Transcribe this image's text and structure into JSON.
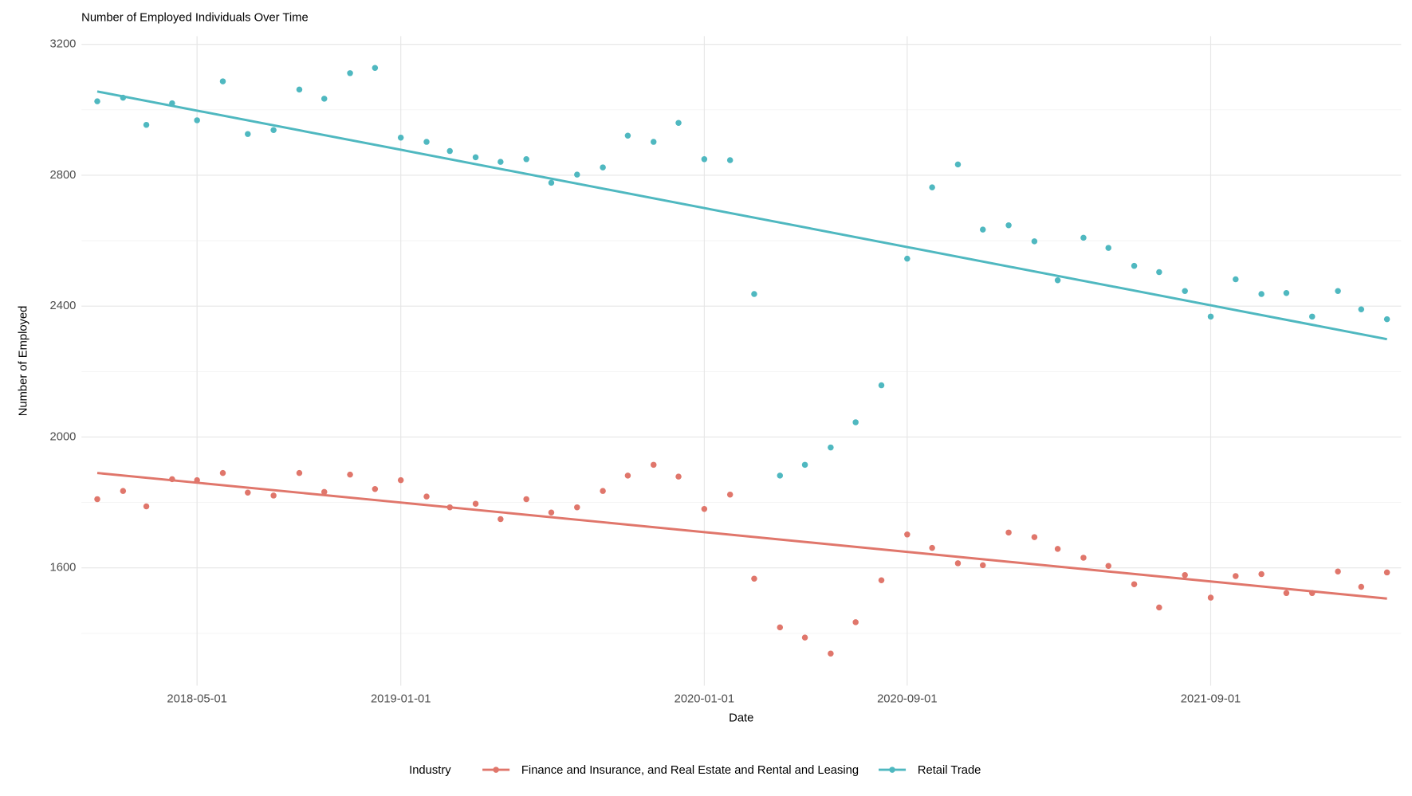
{
  "chart_data": {
    "type": "scatter",
    "title": "Number of Employed Individuals Over Time",
    "x_label": "Date",
    "y_label": "Number of Employed",
    "legend_title": "Industry",
    "legend_position": "bottom",
    "x": [
      "2018-01-01",
      "2018-02-01",
      "2018-03-01",
      "2018-04-01",
      "2018-05-01",
      "2018-06-01",
      "2018-07-01",
      "2018-08-01",
      "2018-09-01",
      "2018-10-01",
      "2018-11-01",
      "2018-12-01",
      "2019-01-01",
      "2019-02-01",
      "2019-03-01",
      "2019-04-01",
      "2019-05-01",
      "2019-06-01",
      "2019-07-01",
      "2019-08-01",
      "2019-09-01",
      "2019-10-01",
      "2019-11-01",
      "2019-12-01",
      "2020-01-01",
      "2020-02-01",
      "2020-03-01",
      "2020-04-01",
      "2020-05-01",
      "2020-06-01",
      "2020-07-01",
      "2020-08-01",
      "2020-09-01",
      "2020-10-01",
      "2020-11-01",
      "2020-12-01",
      "2021-01-01",
      "2021-02-01",
      "2021-03-01",
      "2021-04-01",
      "2021-05-01",
      "2021-06-01",
      "2021-07-01",
      "2021-08-01",
      "2021-09-01",
      "2021-10-01",
      "2021-11-01",
      "2021-12-01",
      "2022-01-01",
      "2022-02-01",
      "2022-03-01",
      "2022-04-01"
    ],
    "series": [
      {
        "name": "Finance and Insurance, and Real Estate and Rental and Leasing",
        "color": "#e0766b",
        "values": [
          1810,
          1835,
          1788,
          1871,
          1868,
          1890,
          1830,
          1821,
          1890,
          1832,
          1885,
          1841,
          1868,
          1818,
          1785,
          1796,
          1749,
          1810,
          1769,
          1785,
          1835,
          1882,
          1915,
          1879,
          1780,
          1824,
          1567,
          1418,
          1387,
          1338,
          1434,
          1562,
          1702,
          1661,
          1614,
          1608,
          1708,
          1694,
          1658,
          1631,
          1606,
          1550,
          1479,
          1578,
          1509,
          1575,
          1581,
          1523,
          1523,
          1589,
          1542,
          1586
        ],
        "trend": [
          1890,
          1506
        ]
      },
      {
        "name": "Retail Trade",
        "color": "#4fb8c0",
        "values": [
          3026,
          3037,
          2954,
          3020,
          2968,
          3087,
          2926,
          2938,
          3062,
          3034,
          3112,
          3128,
          2915,
          2902,
          2874,
          2855,
          2841,
          2849,
          2777,
          2802,
          2824,
          2921,
          2902,
          2960,
          2849,
          2846,
          2437,
          1882,
          1915,
          1968,
          2045,
          2158,
          2545,
          2763,
          2833,
          2634,
          2647,
          2598,
          2479,
          2609,
          2578,
          2523,
          2504,
          2446,
          2368,
          2482,
          2437,
          2440,
          2368,
          2446,
          2390,
          2360
        ],
        "trend": [
          3056,
          2299
        ]
      }
    ],
    "xlim": [
      "2017-12-13",
      "2022-04-18"
    ],
    "xticks": [
      "2018-05-01",
      "2019-01-01",
      "2020-01-01",
      "2020-09-01",
      "2021-09-01"
    ],
    "ylim": [
      1240,
      3225
    ],
    "yticks": [
      1600,
      2000,
      2400,
      2800,
      3200
    ],
    "grid": true
  }
}
